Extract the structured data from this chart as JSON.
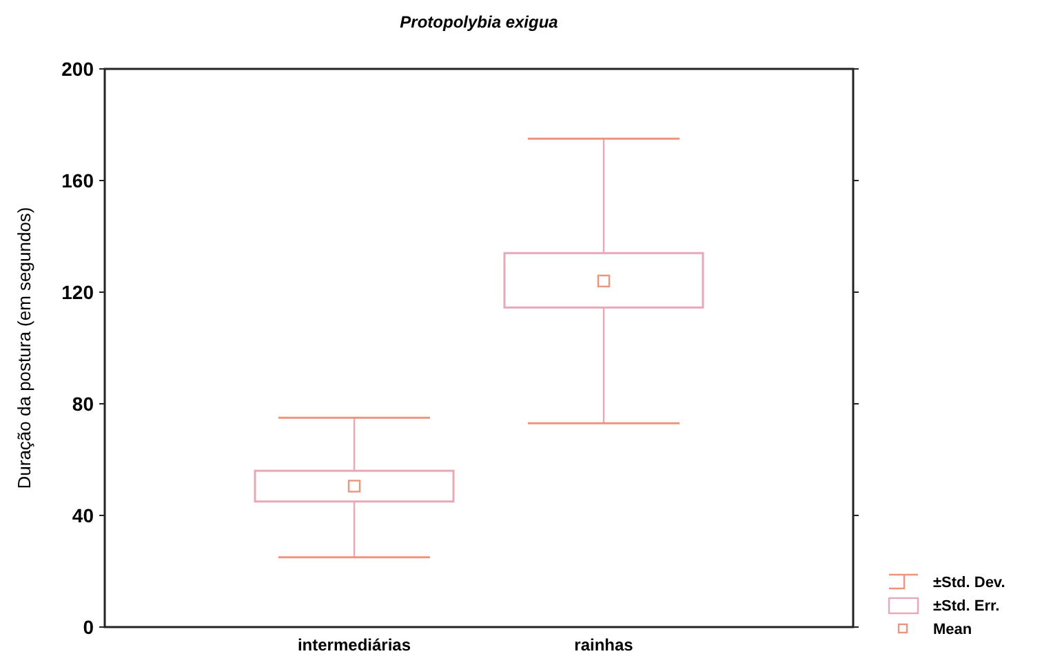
{
  "chart_data": {
    "type": "box",
    "title": "Protopolybia exigua",
    "ylabel": "Duração da postura (em segundos)",
    "categories": [
      "intermediárias",
      "rainhas"
    ],
    "boxes": [
      {
        "low": 25,
        "q1": 45,
        "median": 50.5,
        "q3": 56,
        "high": 75
      },
      {
        "low": 73,
        "q1": 114.5,
        "median": 124,
        "q3": 134,
        "high": 175
      }
    ],
    "colors": [
      "#e8a8b8",
      "#e8a8b8"
    ],
    "ylim": [
      0,
      200
    ],
    "yticks": [
      0,
      40,
      80,
      120,
      160,
      200
    ],
    "grid": false,
    "annotations": [
      "±Std. Dev.",
      "±Std. Err.",
      "Mean"
    ]
  }
}
